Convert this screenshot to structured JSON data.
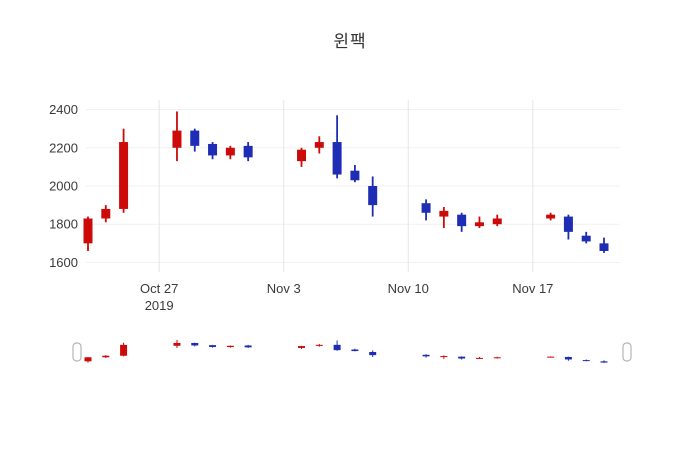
{
  "title": "윈팩",
  "chart_data": {
    "type": "candlestick",
    "title": "윈팩",
    "increasing_color": "#cc0a0a",
    "decreasing_color": "#1f2db4",
    "grid": true,
    "ylim": [
      1550,
      2450
    ],
    "yticks": [
      1600,
      1800,
      2000,
      2200,
      2400
    ],
    "xticks": [
      {
        "date": "2019-10-27",
        "label": "Oct 27",
        "sublabel": "2019"
      },
      {
        "date": "2019-11-03",
        "label": "Nov 3",
        "sublabel": ""
      },
      {
        "date": "2019-11-10",
        "label": "Nov 10",
        "sublabel": ""
      },
      {
        "date": "2019-11-17",
        "label": "Nov 17",
        "sublabel": ""
      }
    ],
    "rangeslider": true,
    "candles": [
      {
        "date": "2019-10-23",
        "open": 1700,
        "high": 1840,
        "low": 1660,
        "close": 1830
      },
      {
        "date": "2019-10-24",
        "open": 1830,
        "high": 1900,
        "low": 1810,
        "close": 1880
      },
      {
        "date": "2019-10-25",
        "open": 1880,
        "high": 2300,
        "low": 1860,
        "close": 2230
      },
      {
        "date": "2019-10-28",
        "open": 2200,
        "high": 2390,
        "low": 2130,
        "close": 2290
      },
      {
        "date": "2019-10-29",
        "open": 2290,
        "high": 2300,
        "low": 2180,
        "close": 2210
      },
      {
        "date": "2019-10-30",
        "open": 2220,
        "high": 2230,
        "low": 2140,
        "close": 2160
      },
      {
        "date": "2019-10-31",
        "open": 2160,
        "high": 2210,
        "low": 2140,
        "close": 2200
      },
      {
        "date": "2019-11-01",
        "open": 2210,
        "high": 2230,
        "low": 2130,
        "close": 2150
      },
      {
        "date": "2019-11-04",
        "open": 2130,
        "high": 2200,
        "low": 2100,
        "close": 2190
      },
      {
        "date": "2019-11-05",
        "open": 2200,
        "high": 2260,
        "low": 2170,
        "close": 2230
      },
      {
        "date": "2019-11-06",
        "open": 2230,
        "high": 2370,
        "low": 2040,
        "close": 2060
      },
      {
        "date": "2019-11-07",
        "open": 2080,
        "high": 2110,
        "low": 2020,
        "close": 2030
      },
      {
        "date": "2019-11-08",
        "open": 2000,
        "high": 2050,
        "low": 1840,
        "close": 1900
      },
      {
        "date": "2019-11-11",
        "open": 1910,
        "high": 1930,
        "low": 1820,
        "close": 1860
      },
      {
        "date": "2019-11-12",
        "open": 1840,
        "high": 1890,
        "low": 1780,
        "close": 1870
      },
      {
        "date": "2019-11-13",
        "open": 1850,
        "high": 1860,
        "low": 1760,
        "close": 1790
      },
      {
        "date": "2019-11-14",
        "open": 1790,
        "high": 1840,
        "low": 1780,
        "close": 1810
      },
      {
        "date": "2019-11-15",
        "open": 1800,
        "high": 1850,
        "low": 1790,
        "close": 1830
      },
      {
        "date": "2019-11-18",
        "open": 1830,
        "high": 1860,
        "low": 1820,
        "close": 1850
      },
      {
        "date": "2019-11-19",
        "open": 1840,
        "high": 1850,
        "low": 1720,
        "close": 1760
      },
      {
        "date": "2019-11-20",
        "open": 1740,
        "high": 1760,
        "low": 1700,
        "close": 1710
      },
      {
        "date": "2019-11-21",
        "open": 1700,
        "high": 1730,
        "low": 1650,
        "close": 1660
      }
    ]
  }
}
